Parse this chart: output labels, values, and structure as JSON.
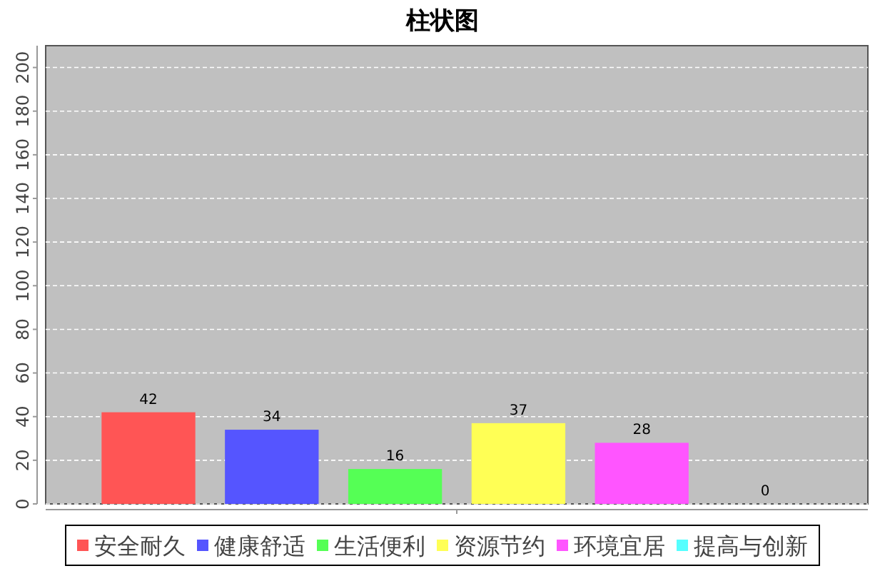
{
  "chart_data": {
    "type": "bar",
    "title": "柱状图",
    "categories": [
      null
    ],
    "series": [
      {
        "name": "安全耐久",
        "color": "#ff5555",
        "values": [
          42
        ]
      },
      {
        "name": "健康舒适",
        "color": "#5555ff",
        "values": [
          34
        ]
      },
      {
        "name": "生活便利",
        "color": "#55ff55",
        "values": [
          16
        ]
      },
      {
        "name": "资源节约",
        "color": "#ffff55",
        "values": [
          37
        ]
      },
      {
        "name": "环境宜居",
        "color": "#ff55ff",
        "values": [
          28
        ]
      },
      {
        "name": "提高与创新",
        "color": "#55ffff",
        "values": [
          0
        ]
      }
    ],
    "ylim": [
      0,
      210
    ],
    "yticks": [
      0,
      20,
      40,
      60,
      80,
      100,
      120,
      140,
      160,
      180,
      200
    ],
    "grid": "y",
    "legend": "bottom",
    "data_labels": true
  }
}
